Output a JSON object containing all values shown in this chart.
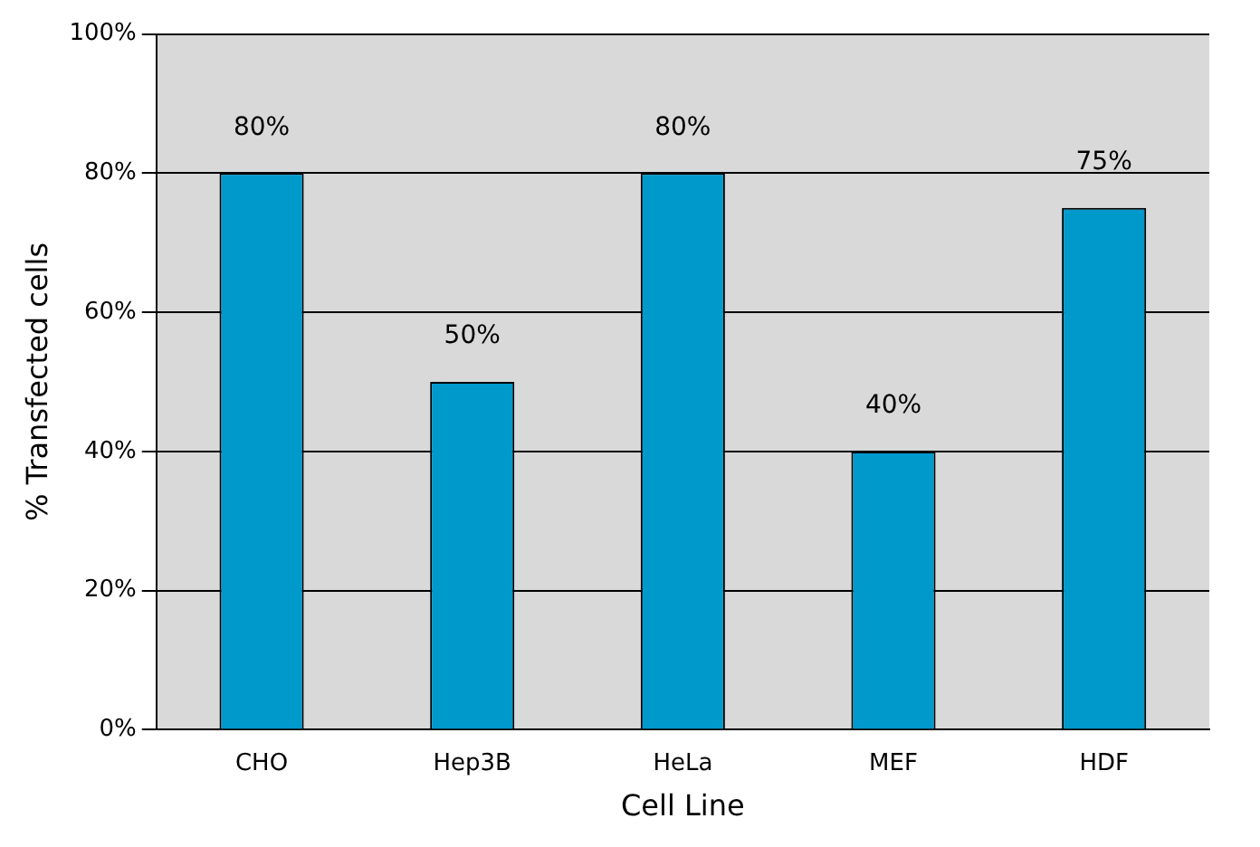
{
  "chart_data": {
    "type": "bar",
    "xlabel": "Cell Line",
    "ylabel": "% Transfected cells",
    "categories": [
      "CHO",
      "Hep3B",
      "HeLa",
      "MEF",
      "HDF"
    ],
    "values": [
      80,
      50,
      80,
      40,
      75
    ],
    "color": "#0099cc",
    "value_labels": [
      "80%",
      "50%",
      "80%",
      "40%",
      "75%"
    ],
    "ylim": [
      0,
      100
    ],
    "yticks": [
      {
        "value": 0,
        "label": "0%"
      },
      {
        "value": 20,
        "label": "20%"
      },
      {
        "value": 40,
        "label": "40%"
      },
      {
        "value": 60,
        "label": "60%"
      },
      {
        "value": 80,
        "label": "80%"
      },
      {
        "value": 100,
        "label": "100%"
      }
    ],
    "grid": "y",
    "legend": false
  }
}
